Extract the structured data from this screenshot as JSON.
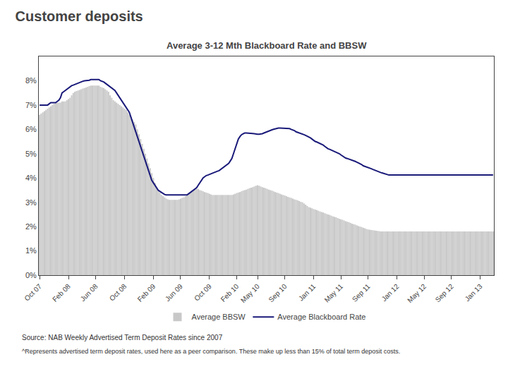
{
  "chart_data": {
    "type": "bar",
    "title": "Customer deposits",
    "subtitle": "Average 3-12 Mth Blackboard Rate and BBSW",
    "annotations": [
      "Source: NAB Weekly Advertised Term Deposit Rates since 2007",
      "^Represents advertised term deposit rates, used here as a peer comparison. These make up less than 15% of total term deposit costs."
    ],
    "categories": [
      "Oct 07",
      null,
      null,
      null,
      null,
      null,
      null,
      null,
      null,
      null,
      null,
      null,
      null,
      null,
      null,
      null,
      null,
      null,
      "Feb 08",
      null,
      null,
      null,
      null,
      null,
      null,
      null,
      null,
      null,
      null,
      null,
      null,
      null,
      null,
      null,
      null,
      "Jun 08",
      null,
      null,
      null,
      null,
      null,
      null,
      null,
      null,
      null,
      null,
      null,
      null,
      null,
      null,
      null,
      null,
      null,
      "Oct 08",
      null,
      null,
      null,
      null,
      null,
      null,
      null,
      null,
      null,
      null,
      null,
      null,
      null,
      null,
      null,
      null,
      null,
      "Feb 09",
      null,
      null,
      null,
      null,
      null,
      null,
      null,
      null,
      null,
      null,
      null,
      null,
      null,
      null,
      null,
      null,
      "Jun 09",
      null,
      null,
      null,
      null,
      null,
      null,
      null,
      null,
      null,
      null,
      null,
      null,
      null,
      null,
      null,
      null,
      null,
      "Oct 09",
      null,
      null,
      null,
      null,
      null,
      null,
      null,
      null,
      null,
      null,
      null,
      null,
      null,
      null,
      null,
      null,
      "Feb 10",
      null,
      null,
      null,
      null,
      null,
      null,
      null,
      null,
      null,
      null,
      null,
      null,
      "May 10",
      null,
      null,
      null,
      null,
      null,
      null,
      null,
      null,
      null,
      null,
      null,
      null,
      null,
      null,
      null,
      null,
      "Sep 10",
      null,
      null,
      null,
      null,
      null,
      null,
      null,
      null,
      null,
      null,
      null,
      null,
      null,
      null,
      null,
      null,
      null,
      "Jan 11",
      null,
      null,
      null,
      null,
      null,
      null,
      null,
      null,
      null,
      null,
      null,
      null,
      null,
      null,
      null,
      null,
      "May 11",
      null,
      null,
      null,
      null,
      null,
      null,
      null,
      null,
      null,
      null,
      null,
      null,
      null,
      null,
      null,
      null,
      "Sep 11",
      null,
      null,
      null,
      null,
      null,
      null,
      null,
      null,
      null,
      null,
      null,
      null,
      null,
      null,
      null,
      null,
      null,
      "Jan 12",
      null,
      null,
      null,
      null,
      null,
      null,
      null,
      null,
      null,
      null,
      null,
      null,
      null,
      null,
      null,
      null,
      "May 12",
      null,
      null,
      null,
      null,
      null,
      null,
      null,
      null,
      null,
      null,
      null,
      null,
      null,
      null,
      null,
      null,
      "Sep 12",
      null,
      null,
      null,
      null,
      null,
      null,
      null,
      null,
      null,
      null,
      null,
      null,
      null,
      null,
      null,
      null,
      null,
      "Jan 13",
      null,
      null,
      null,
      null,
      null,
      null,
      null,
      null
    ],
    "series": [
      {
        "name": "Average BBSW",
        "type": "bar",
        "color": "#c8c8c8",
        "values": [
          6.6,
          6.65,
          6.7,
          6.75,
          6.8,
          6.85,
          6.9,
          6.95,
          7.0,
          7.05,
          7.1,
          7.1,
          7.1,
          7.1,
          7.15,
          7.15,
          7.15,
          7.2,
          7.25,
          7.3,
          7.4,
          7.5,
          7.55,
          7.58,
          7.6,
          7.62,
          7.65,
          7.68,
          7.7,
          7.72,
          7.75,
          7.78,
          7.8,
          7.8,
          7.8,
          7.8,
          7.8,
          7.8,
          7.75,
          7.72,
          7.7,
          7.65,
          7.6,
          7.55,
          7.4,
          7.3,
          7.2,
          7.15,
          7.1,
          7.05,
          7.0,
          6.95,
          6.9,
          6.85,
          6.8,
          6.7,
          6.6,
          6.5,
          6.4,
          6.3,
          6.2,
          6.0,
          5.8,
          5.6,
          5.4,
          5.2,
          5.0,
          4.8,
          4.6,
          4.4,
          4.2,
          4.0,
          3.8,
          3.6,
          3.5,
          3.4,
          3.3,
          3.25,
          3.2,
          3.15,
          3.12,
          3.1,
          3.1,
          3.1,
          3.1,
          3.1,
          3.1,
          3.12,
          3.15,
          3.18,
          3.2,
          3.25,
          3.3,
          3.35,
          3.4,
          3.45,
          3.5,
          3.52,
          3.55,
          3.55,
          3.5,
          3.48,
          3.45,
          3.42,
          3.4,
          3.38,
          3.35,
          3.32,
          3.3,
          3.3,
          3.3,
          3.3,
          3.3,
          3.3,
          3.3,
          3.3,
          3.3,
          3.3,
          3.3,
          3.3,
          3.3,
          3.32,
          3.35,
          3.38,
          3.4,
          3.42,
          3.45,
          3.48,
          3.5,
          3.52,
          3.55,
          3.58,
          3.6,
          3.62,
          3.65,
          3.68,
          3.7,
          3.68,
          3.65,
          3.62,
          3.6,
          3.58,
          3.55,
          3.52,
          3.5,
          3.48,
          3.45,
          3.42,
          3.4,
          3.38,
          3.35,
          3.32,
          3.3,
          3.28,
          3.25,
          3.22,
          3.2,
          3.18,
          3.15,
          3.12,
          3.1,
          3.08,
          3.05,
          3.02,
          3.0,
          2.95,
          2.9,
          2.85,
          2.8,
          2.78,
          2.75,
          2.72,
          2.7,
          2.68,
          2.65,
          2.62,
          2.6,
          2.58,
          2.55,
          2.52,
          2.5,
          2.48,
          2.45,
          2.42,
          2.4,
          2.38,
          2.35,
          2.32,
          2.3,
          2.28,
          2.25,
          2.22,
          2.2,
          2.18,
          2.15,
          2.12,
          2.1,
          2.08,
          2.05,
          2.02,
          2.0,
          1.98,
          1.95,
          1.93,
          1.9,
          1.88,
          1.87,
          1.86,
          1.85,
          1.84,
          1.83,
          1.82,
          1.81,
          1.8,
          1.8,
          1.8,
          1.8,
          1.8,
          1.8,
          1.8,
          1.8,
          1.8,
          1.8,
          1.8,
          1.8,
          1.8,
          1.8,
          1.8,
          1.8,
          1.8,
          1.8,
          1.8,
          1.8,
          1.8,
          1.8,
          1.8,
          1.8,
          1.8,
          1.8,
          1.8,
          1.8,
          1.8,
          1.8,
          1.8,
          1.8,
          1.8,
          1.8,
          1.8,
          1.8,
          1.8,
          1.8,
          1.8,
          1.8,
          1.8,
          1.8,
          1.8,
          1.8,
          1.8,
          1.8,
          1.8,
          1.8,
          1.8,
          1.8,
          1.8,
          1.8,
          1.8,
          1.8,
          1.8,
          1.8,
          1.8,
          1.8,
          1.8,
          1.8,
          1.8,
          1.8,
          1.8,
          1.8,
          1.8,
          1.8,
          1.8,
          1.8,
          1.8,
          1.8,
          1.8
        ]
      },
      {
        "name": "Average Blackboard Rate",
        "type": "line",
        "color": "#1a1a7a",
        "values": [
          7.0,
          7.0,
          7.0,
          7.0,
          7.0,
          7.0,
          7.05,
          7.1,
          7.1,
          7.1,
          7.1,
          7.15,
          7.2,
          7.3,
          7.5,
          7.55,
          7.6,
          7.65,
          7.7,
          7.75,
          7.8,
          7.82,
          7.85,
          7.88,
          7.9,
          7.92,
          7.95,
          7.98,
          8.0,
          8.0,
          8.0,
          8.02,
          8.05,
          8.05,
          8.05,
          8.05,
          8.05,
          8.05,
          8.0,
          7.98,
          7.95,
          7.9,
          7.85,
          7.8,
          7.75,
          7.7,
          7.65,
          7.6,
          7.5,
          7.4,
          7.3,
          7.2,
          7.1,
          7.0,
          6.9,
          6.8,
          6.7,
          6.5,
          6.3,
          6.1,
          5.9,
          5.7,
          5.5,
          5.3,
          5.1,
          4.9,
          4.7,
          4.5,
          4.3,
          4.1,
          3.9,
          3.8,
          3.7,
          3.6,
          3.5,
          3.45,
          3.4,
          3.35,
          3.32,
          3.3,
          3.3,
          3.3,
          3.3,
          3.3,
          3.3,
          3.3,
          3.3,
          3.3,
          3.3,
          3.3,
          3.3,
          3.3,
          3.3,
          3.35,
          3.4,
          3.45,
          3.5,
          3.55,
          3.6,
          3.7,
          3.8,
          3.9,
          4.0,
          4.05,
          4.1,
          4.12,
          4.15,
          4.18,
          4.2,
          4.22,
          4.25,
          4.28,
          4.3,
          4.35,
          4.4,
          4.45,
          4.5,
          4.55,
          4.6,
          4.7,
          4.8,
          5.0,
          5.2,
          5.4,
          5.6,
          5.7,
          5.78,
          5.82,
          5.85,
          5.85,
          5.85,
          5.85,
          5.85,
          5.83,
          5.82,
          5.8,
          5.8,
          5.8,
          5.8,
          5.82,
          5.85,
          5.88,
          5.9,
          5.92,
          5.95,
          5.98,
          6.0,
          6.02,
          6.05,
          6.05,
          6.05,
          6.05,
          6.05,
          6.05,
          6.05,
          6.05,
          6.03,
          6.0,
          5.98,
          5.95,
          5.9,
          5.88,
          5.85,
          5.82,
          5.8,
          5.78,
          5.75,
          5.72,
          5.7,
          5.65,
          5.6,
          5.55,
          5.5,
          5.48,
          5.45,
          5.42,
          5.4,
          5.35,
          5.3,
          5.25,
          5.2,
          5.18,
          5.15,
          5.12,
          5.1,
          5.08,
          5.05,
          5.0,
          4.95,
          4.9,
          4.85,
          4.82,
          4.8,
          4.78,
          4.75,
          4.72,
          4.7,
          4.68,
          4.65,
          4.62,
          4.6,
          4.55,
          4.5,
          4.48,
          4.45,
          4.42,
          4.4,
          4.38,
          4.35,
          4.32,
          4.3,
          4.28,
          4.25,
          4.22,
          4.2,
          4.18,
          4.15,
          4.13,
          4.12,
          4.12,
          4.12,
          4.12,
          4.12,
          4.12,
          4.12,
          4.12,
          4.12,
          4.12,
          4.12,
          4.12,
          4.12,
          4.12,
          4.12,
          4.12,
          4.12,
          4.12,
          4.12,
          4.12,
          4.12,
          4.12,
          4.12,
          4.12,
          4.12,
          4.12,
          4.12,
          4.12,
          4.12,
          4.12,
          4.12,
          4.12,
          4.12,
          4.12,
          4.12,
          4.12,
          4.12,
          4.12,
          4.12,
          4.12,
          4.12,
          4.12,
          4.12,
          4.12,
          4.12,
          4.12,
          4.12,
          4.12,
          4.12,
          4.12,
          4.12,
          4.12,
          4.12,
          4.12,
          4.12,
          4.12,
          4.12,
          4.12,
          4.12,
          4.12,
          4.12,
          4.12,
          4.12,
          4.12,
          4.12,
          4.12
        ]
      }
    ],
    "ylim": [
      0,
      9
    ],
    "yticks": [
      {
        "value": 0,
        "label": "0%"
      },
      {
        "value": 1,
        "label": "1%"
      },
      {
        "value": 2,
        "label": "2%"
      },
      {
        "value": 3,
        "label": "3%"
      },
      {
        "value": 4,
        "label": "4%"
      },
      {
        "value": 5,
        "label": "5%"
      },
      {
        "value": 6,
        "label": "6%"
      },
      {
        "value": 7,
        "label": "7%"
      },
      {
        "value": 8,
        "label": "8%"
      }
    ],
    "grid": false,
    "legend": "bottom"
  }
}
